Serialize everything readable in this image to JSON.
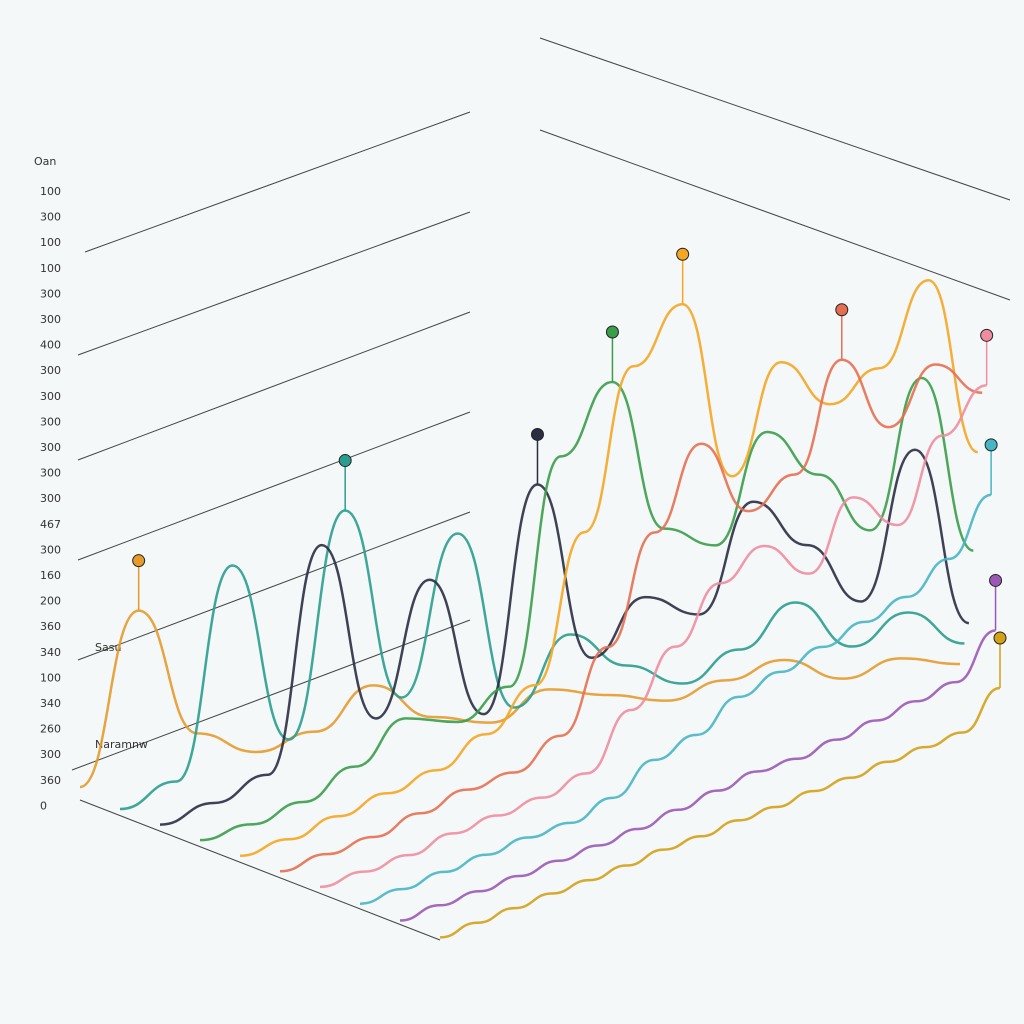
{
  "chart_data": {
    "type": "ridgeline3d",
    "y_axis_title": "Oan",
    "y_axis_labels": [
      "100",
      "300",
      "100",
      "100",
      "300",
      "300",
      "400",
      "300",
      "300",
      "300",
      "300",
      "300",
      "300",
      "467",
      "300",
      "160",
      "200",
      "360",
      "340",
      "100",
      "340",
      "260",
      "300",
      "360",
      "0"
    ],
    "annotations": [
      "Sasu",
      "Naramnw"
    ],
    "ylim": [
      0,
      400
    ],
    "series": [
      {
        "color": "#e59a2c",
        "values": [
          10,
          140,
          40,
          20,
          30,
          60,
          30,
          20,
          40,
          30,
          20,
          30,
          40,
          20,
          30,
          20
        ]
      },
      {
        "color": "#2a9d8f",
        "values": [
          5,
          20,
          180,
          40,
          210,
          60,
          180,
          40,
          90,
          60,
          40,
          60,
          90,
          50,
          70,
          40
        ]
      },
      {
        "color": "#2b2d42",
        "values": [
          5,
          15,
          30,
          200,
          60,
          160,
          50,
          220,
          80,
          120,
          100,
          180,
          140,
          90,
          200,
          60
        ]
      },
      {
        "color": "#3a9d4a",
        "values": [
          5,
          10,
          20,
          40,
          70,
          60,
          80,
          250,
          300,
          180,
          160,
          240,
          200,
          150,
          260,
          120
        ]
      },
      {
        "color": "#f5a623",
        "values": [
          5,
          10,
          20,
          30,
          40,
          60,
          90,
          200,
          320,
          360,
          220,
          300,
          260,
          280,
          340,
          200
        ]
      },
      {
        "color": "#e76f51",
        "values": [
          5,
          10,
          15,
          25,
          35,
          40,
          60,
          120,
          200,
          260,
          200,
          220,
          300,
          240,
          280,
          250
        ]
      },
      {
        "color": "#f08ca0",
        "values": [
          5,
          8,
          12,
          20,
          25,
          30,
          40,
          80,
          120,
          160,
          180,
          150,
          200,
          170,
          230,
          260
        ]
      },
      {
        "color": "#48b5c4",
        "values": [
          4,
          6,
          10,
          14,
          18,
          20,
          30,
          50,
          60,
          80,
          90,
          100,
          110,
          120,
          140,
          180
        ]
      },
      {
        "color": "#9b59b6",
        "values": [
          3,
          5,
          6,
          8,
          10,
          12,
          15,
          20,
          25,
          30,
          30,
          35,
          40,
          45,
          50,
          80
        ]
      },
      {
        "color": "#d4a017",
        "values": [
          2,
          3,
          4,
          5,
          5,
          6,
          8,
          8,
          10,
          10,
          12,
          12,
          14,
          15,
          16,
          40
        ]
      }
    ]
  }
}
